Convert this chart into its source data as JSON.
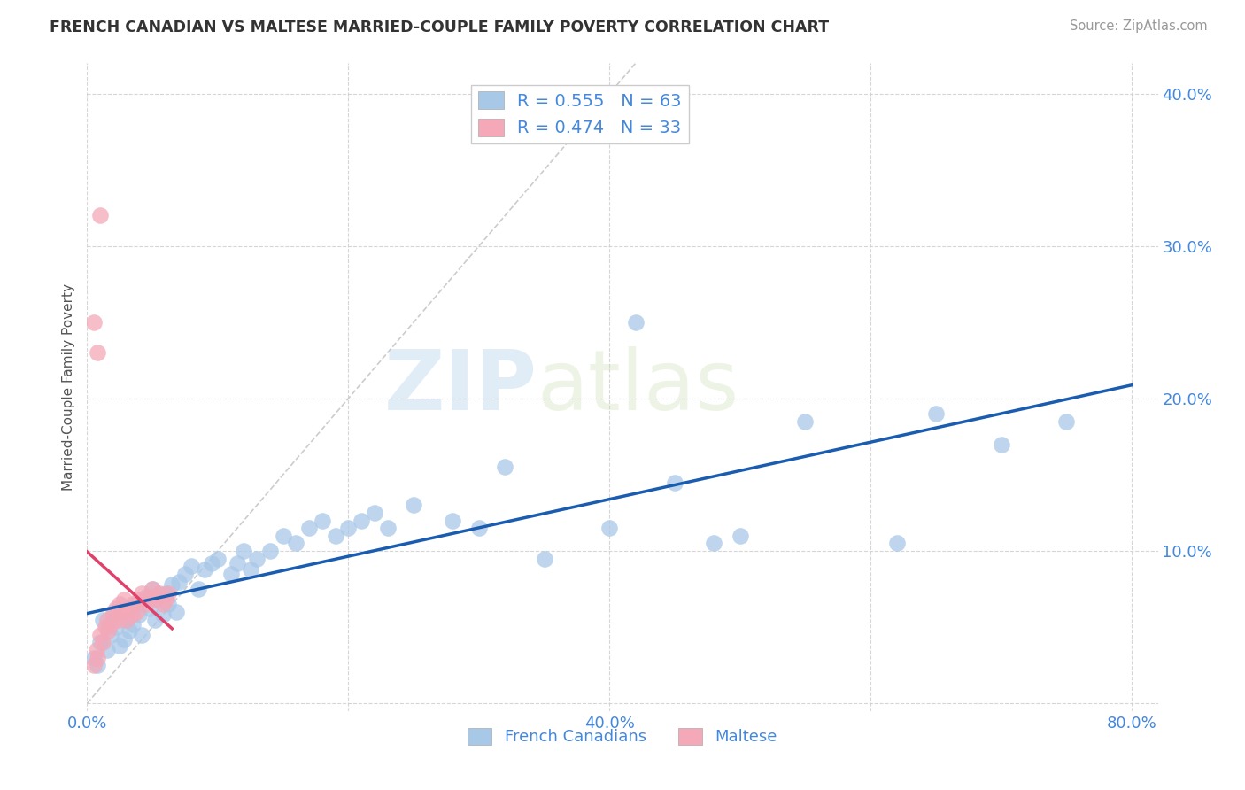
{
  "title": "FRENCH CANADIAN VS MALTESE MARRIED-COUPLE FAMILY POVERTY CORRELATION CHART",
  "source": "Source: ZipAtlas.com",
  "ylabel": "Married-Couple Family Poverty",
  "xlim": [
    0.0,
    0.82
  ],
  "ylim": [
    -0.005,
    0.42
  ],
  "xticks": [
    0.0,
    0.2,
    0.4,
    0.6,
    0.8
  ],
  "yticks": [
    0.0,
    0.1,
    0.2,
    0.3,
    0.4
  ],
  "ytick_labels_left": [
    "",
    "",
    "",
    "",
    ""
  ],
  "ytick_labels_right": [
    "",
    "10.0%",
    "20.0%",
    "30.0%",
    "40.0%"
  ],
  "xtick_labels": [
    "0.0%",
    "",
    "40.0%",
    "",
    "80.0%"
  ],
  "french_R": 0.555,
  "french_N": 63,
  "maltese_R": 0.474,
  "maltese_N": 33,
  "french_color": "#a8c8e8",
  "maltese_color": "#f4a8b8",
  "french_line_color": "#1a5cb0",
  "maltese_line_color": "#e0406a",
  "french_scatter_x": [
    0.005,
    0.008,
    0.01,
    0.012,
    0.015,
    0.018,
    0.02,
    0.022,
    0.025,
    0.028,
    0.03,
    0.032,
    0.035,
    0.038,
    0.04,
    0.042,
    0.045,
    0.048,
    0.05,
    0.052,
    0.055,
    0.058,
    0.06,
    0.062,
    0.065,
    0.068,
    0.07,
    0.075,
    0.08,
    0.085,
    0.09,
    0.095,
    0.1,
    0.11,
    0.115,
    0.12,
    0.125,
    0.13,
    0.14,
    0.15,
    0.16,
    0.17,
    0.18,
    0.19,
    0.2,
    0.21,
    0.22,
    0.23,
    0.25,
    0.28,
    0.3,
    0.32,
    0.35,
    0.4,
    0.42,
    0.45,
    0.48,
    0.5,
    0.55,
    0.62,
    0.65,
    0.7,
    0.75
  ],
  "french_scatter_y": [
    0.03,
    0.025,
    0.04,
    0.055,
    0.035,
    0.045,
    0.06,
    0.05,
    0.038,
    0.042,
    0.055,
    0.048,
    0.052,
    0.065,
    0.058,
    0.045,
    0.07,
    0.062,
    0.075,
    0.055,
    0.068,
    0.058,
    0.072,
    0.065,
    0.078,
    0.06,
    0.08,
    0.085,
    0.09,
    0.075,
    0.088,
    0.092,
    0.095,
    0.085,
    0.092,
    0.1,
    0.088,
    0.095,
    0.1,
    0.11,
    0.105,
    0.115,
    0.12,
    0.11,
    0.115,
    0.12,
    0.125,
    0.115,
    0.13,
    0.12,
    0.115,
    0.155,
    0.095,
    0.115,
    0.25,
    0.145,
    0.105,
    0.11,
    0.185,
    0.105,
    0.19,
    0.17,
    0.185
  ],
  "maltese_scatter_x": [
    0.005,
    0.007,
    0.008,
    0.01,
    0.012,
    0.014,
    0.015,
    0.016,
    0.018,
    0.02,
    0.022,
    0.024,
    0.025,
    0.026,
    0.028,
    0.03,
    0.032,
    0.034,
    0.035,
    0.038,
    0.04,
    0.042,
    0.045,
    0.048,
    0.05,
    0.052,
    0.055,
    0.058,
    0.06,
    0.062,
    0.005,
    0.008,
    0.01
  ],
  "maltese_scatter_y": [
    0.025,
    0.035,
    0.03,
    0.045,
    0.04,
    0.05,
    0.055,
    0.048,
    0.052,
    0.058,
    0.062,
    0.055,
    0.065,
    0.06,
    0.068,
    0.055,
    0.062,
    0.058,
    0.065,
    0.06,
    0.068,
    0.072,
    0.065,
    0.07,
    0.075,
    0.068,
    0.072,
    0.065,
    0.068,
    0.072,
    0.25,
    0.23,
    0.32
  ],
  "watermark_zip": "ZIP",
  "watermark_atlas": "atlas",
  "legend_labels": [
    "French Canadians",
    "Maltese"
  ],
  "background_color": "#ffffff",
  "grid_color": "#cccccc",
  "title_color": "#333333",
  "axis_color": "#4488dd",
  "source_color": "#999999",
  "diag_color": "#cccccc"
}
